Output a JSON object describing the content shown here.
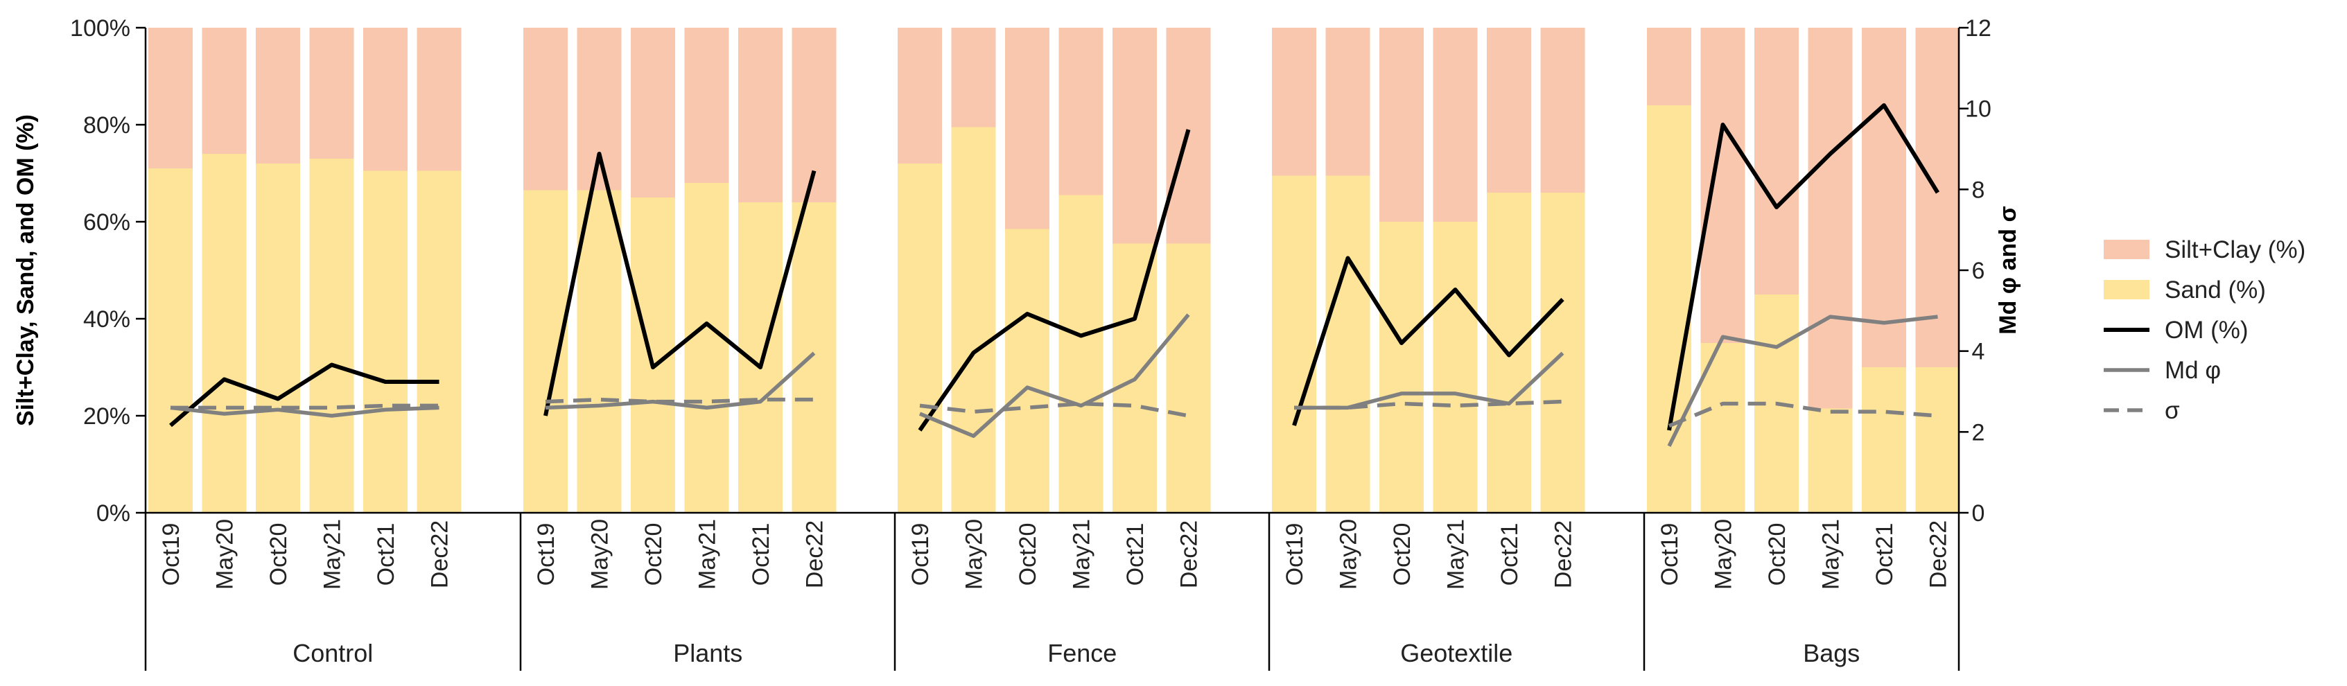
{
  "chart_data": {
    "type": "bar",
    "subtype": "stacked-bar-with-lines",
    "title": "",
    "groups": [
      "Control",
      "Plants",
      "Fence",
      "Geotextile",
      "Bags"
    ],
    "categories": [
      "Oct19",
      "May20",
      "Oct20",
      "May21",
      "Oct21",
      "Dec22"
    ],
    "ylabel": "Silt+Clay, Sand, and OM (%)",
    "y2label": "Md φ and σ",
    "ylim": [
      0,
      100
    ],
    "y2lim": [
      0,
      12
    ],
    "yticks": [
      "0%",
      "20%",
      "40%",
      "60%",
      "80%",
      "100%"
    ],
    "y2ticks": [
      "0",
      "2",
      "4",
      "6",
      "8",
      "10",
      "12"
    ],
    "colors": {
      "silt_clay": "#f9c7ad",
      "sand": "#fde499",
      "om": "#000000",
      "md_phi": "#808080",
      "sigma": "#808080",
      "axis": "#000000"
    },
    "legend": {
      "position": "right",
      "entries": [
        {
          "label": "Silt+Clay (%)",
          "kind": "bar",
          "color_key": "silt_clay"
        },
        {
          "label": "Sand (%)",
          "kind": "bar",
          "color_key": "sand"
        },
        {
          "label": "OM (%)",
          "kind": "line",
          "color_key": "om"
        },
        {
          "label": "Md φ",
          "kind": "line",
          "color_key": "md_phi"
        },
        {
          "label": "σ",
          "kind": "dashed",
          "color_key": "sigma"
        }
      ]
    },
    "series": [
      {
        "name": "Sand (%)",
        "kind": "bar-bottom",
        "axis": "left",
        "values": [
          [
            71,
            74,
            72,
            73,
            70.5,
            70.5
          ],
          [
            66.5,
            66.5,
            65,
            68,
            64,
            64
          ],
          [
            72,
            79.5,
            58.5,
            65.5,
            55.5,
            55.5
          ],
          [
            69.5,
            69.5,
            60,
            60,
            66,
            66
          ],
          [
            84,
            35,
            45,
            21.5,
            30,
            30
          ]
        ]
      },
      {
        "name": "Silt+Clay (%)",
        "kind": "bar-top",
        "axis": "left",
        "values": [
          [
            29,
            26,
            28,
            27,
            29.5,
            29.5
          ],
          [
            33.5,
            33.5,
            35,
            32,
            36,
            36
          ],
          [
            28,
            20.5,
            41.5,
            34.5,
            44.5,
            44.5
          ],
          [
            30.5,
            30.5,
            40,
            40,
            34,
            34
          ],
          [
            16,
            65,
            55,
            78.5,
            70,
            70
          ]
        ]
      },
      {
        "name": "OM (%)",
        "kind": "line",
        "axis": "left",
        "values": [
          [
            18,
            27.5,
            23.5,
            30.5,
            27,
            27
          ],
          [
            20,
            74,
            30,
            39,
            30,
            70.5
          ],
          [
            17,
            33,
            41,
            36.5,
            40,
            79
          ],
          [
            18,
            52.5,
            35,
            46,
            32.5,
            44
          ],
          [
            17,
            80,
            63,
            74,
            84,
            66
          ]
        ]
      },
      {
        "name": "Md φ",
        "kind": "line",
        "axis": "right",
        "values": [
          [
            2.6,
            2.45,
            2.55,
            2.4,
            2.55,
            2.6
          ],
          [
            2.6,
            2.65,
            2.75,
            2.6,
            2.75,
            3.95
          ],
          [
            2.45,
            1.9,
            3.1,
            2.65,
            3.3,
            4.9
          ],
          [
            2.6,
            2.6,
            2.95,
            2.95,
            2.7,
            3.95
          ],
          [
            1.65,
            4.35,
            4.1,
            4.85,
            4.7,
            4.85
          ]
        ]
      },
      {
        "name": "σ",
        "kind": "dashed",
        "axis": "right",
        "values": [
          [
            2.6,
            2.6,
            2.6,
            2.6,
            2.65,
            2.65
          ],
          [
            2.75,
            2.8,
            2.75,
            2.75,
            2.8,
            2.8
          ],
          [
            2.65,
            2.5,
            2.6,
            2.7,
            2.65,
            2.4
          ],
          [
            2.6,
            2.6,
            2.7,
            2.65,
            2.7,
            2.75
          ],
          [
            2.15,
            2.7,
            2.7,
            2.5,
            2.5,
            2.4
          ]
        ]
      }
    ]
  }
}
